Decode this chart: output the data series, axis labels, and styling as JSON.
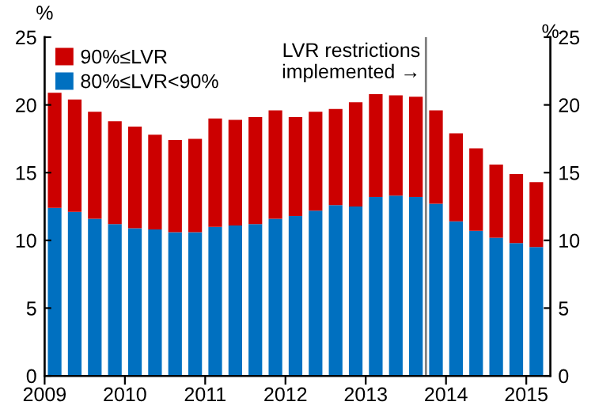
{
  "chart_data": {
    "type": "bar",
    "stacked": true,
    "x": [
      2009.125,
      2009.375,
      2009.625,
      2009.875,
      2010.125,
      2010.375,
      2010.625,
      2010.875,
      2011.125,
      2011.375,
      2011.625,
      2011.875,
      2012.125,
      2012.375,
      2012.625,
      2012.875,
      2013.125,
      2013.375,
      2013.625,
      2013.875,
      2014.125,
      2014.375,
      2014.625,
      2014.875,
      2015.125
    ],
    "series": [
      {
        "name": "80%≤LVR<90%",
        "color": "#0070c0",
        "values": [
          12.4,
          12.1,
          11.6,
          11.2,
          10.9,
          10.8,
          10.6,
          10.6,
          11.0,
          11.1,
          11.2,
          11.6,
          11.8,
          12.2,
          12.6,
          12.5,
          13.2,
          13.3,
          13.2,
          12.7,
          11.4,
          10.7,
          10.2,
          9.8,
          9.5
        ]
      },
      {
        "name": "90%≤LVR",
        "color": "#cc0000",
        "values": [
          8.5,
          8.3,
          7.9,
          7.6,
          7.5,
          7.0,
          6.8,
          6.9,
          8.0,
          7.8,
          7.9,
          8.0,
          7.3,
          7.3,
          7.1,
          7.7,
          7.6,
          7.4,
          7.4,
          6.9,
          6.5,
          6.1,
          5.4,
          5.1,
          4.8
        ]
      }
    ],
    "xlim": [
      2009,
      2015.3
    ],
    "xticks": [
      2009,
      2010,
      2011,
      2012,
      2013,
      2014,
      2015
    ],
    "ylim": [
      0,
      25
    ],
    "yticks": [
      0,
      5,
      10,
      15,
      20,
      25
    ],
    "y2lim": [
      0,
      25
    ],
    "y2ticks": [
      0,
      5,
      10,
      15,
      20,
      25
    ],
    "ylabel": "%",
    "y2label": "%",
    "ref_lines": [
      {
        "axis": "x",
        "value": 2013.75,
        "label": "LVR restrictions\nimplemented →",
        "color": "#808080"
      }
    ],
    "legend": "top left",
    "grid": false
  }
}
